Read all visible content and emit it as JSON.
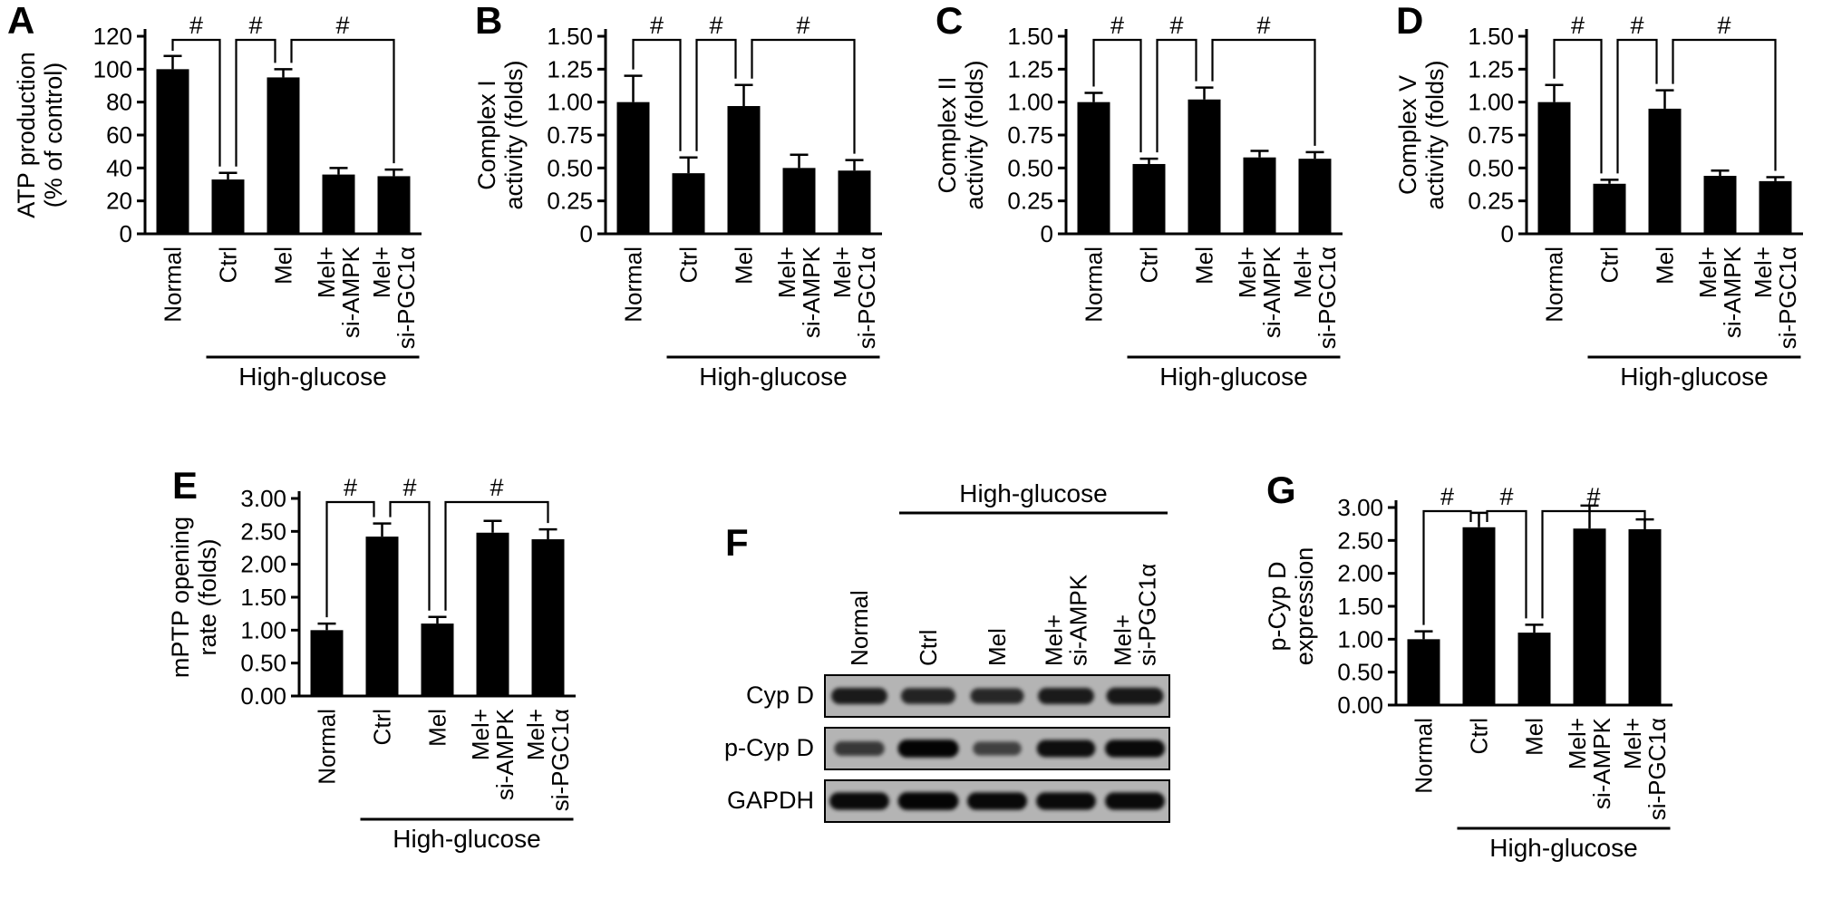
{
  "colors": {
    "bar": "#000000",
    "axis": "#000000",
    "text": "#000000",
    "blot_background": "#b4b4b4",
    "blot_band": "#000000",
    "page_background": "#ffffff"
  },
  "chart_data": [
    {
      "type": "bar",
      "panel": "A",
      "title": "",
      "xlabel": "",
      "ylabel": "ATP production (% of control)",
      "ylabel_lines": [
        "ATP production",
        "(% of control)"
      ],
      "ylim": [
        0,
        120
      ],
      "ticks": [
        0,
        20,
        40,
        60,
        80,
        100,
        120
      ],
      "tick_labels": [
        "0",
        "20",
        "40",
        "60",
        "80",
        "100",
        "120"
      ],
      "categories": [
        "Normal",
        "Ctrl",
        "Mel",
        "Mel+ si-AMPK",
        "Mel+ si-PGC1α"
      ],
      "category_lines": [
        [
          "Normal"
        ],
        [
          "Ctrl"
        ],
        [
          "Mel"
        ],
        [
          "Mel+",
          "si-AMPK"
        ],
        [
          "Mel+",
          "si-PGC1α"
        ]
      ],
      "values": [
        100,
        33,
        95,
        36,
        35
      ],
      "errors": [
        8,
        4,
        5,
        4,
        4
      ],
      "brackets": [
        {
          "from": 0,
          "to": 1,
          "label": "#"
        },
        {
          "from": 1,
          "to": 2,
          "label": "#"
        },
        {
          "from": 2,
          "to": 4,
          "label": "#"
        }
      ],
      "group_label": "High-glucose",
      "group_span": [
        1,
        4
      ],
      "grid": false,
      "legend": false
    },
    {
      "type": "bar",
      "panel": "B",
      "title": "",
      "xlabel": "",
      "ylabel": "Complex I activity (folds)",
      "ylabel_lines": [
        "Complex I",
        "activity (folds)"
      ],
      "ylim": [
        0,
        1.5
      ],
      "ticks": [
        0,
        0.25,
        0.5,
        0.75,
        1,
        1.25,
        1.5
      ],
      "tick_labels": [
        "0",
        "0.25",
        "0.50",
        "0.75",
        "1.00",
        "1.25",
        "1.50"
      ],
      "categories": [
        "Normal",
        "Ctrl",
        "Mel",
        "Mel+ si-AMPK",
        "Mel+ si-PGC1α"
      ],
      "category_lines": [
        [
          "Normal"
        ],
        [
          "Ctrl"
        ],
        [
          "Mel"
        ],
        [
          "Mel+",
          "si-AMPK"
        ],
        [
          "Mel+",
          "si-PGC1α"
        ]
      ],
      "values": [
        1.0,
        0.46,
        0.97,
        0.5,
        0.48
      ],
      "errors": [
        0.2,
        0.12,
        0.16,
        0.1,
        0.08
      ],
      "brackets": [
        {
          "from": 0,
          "to": 1,
          "label": "#"
        },
        {
          "from": 1,
          "to": 2,
          "label": "#"
        },
        {
          "from": 2,
          "to": 4,
          "label": "#"
        }
      ],
      "group_label": "High-glucose",
      "group_span": [
        1,
        4
      ],
      "grid": false,
      "legend": false
    },
    {
      "type": "bar",
      "panel": "C",
      "title": "",
      "xlabel": "",
      "ylabel": "Complex II activity (folds)",
      "ylabel_lines": [
        "Complex II",
        "activity (folds)"
      ],
      "ylim": [
        0,
        1.5
      ],
      "ticks": [
        0,
        0.25,
        0.5,
        0.75,
        1,
        1.25,
        1.5
      ],
      "tick_labels": [
        "0",
        "0.25",
        "0.50",
        "0.75",
        "1.00",
        "1.25",
        "1.50"
      ],
      "categories": [
        "Normal",
        "Ctrl",
        "Mel",
        "Mel+ si-AMPK",
        "Mel+ si-PGC1α"
      ],
      "category_lines": [
        [
          "Normal"
        ],
        [
          "Ctrl"
        ],
        [
          "Mel"
        ],
        [
          "Mel+",
          "si-AMPK"
        ],
        [
          "Mel+",
          "si-PGC1α"
        ]
      ],
      "values": [
        1.0,
        0.53,
        1.02,
        0.58,
        0.57
      ],
      "errors": [
        0.07,
        0.04,
        0.09,
        0.05,
        0.05
      ],
      "brackets": [
        {
          "from": 0,
          "to": 1,
          "label": "#"
        },
        {
          "from": 1,
          "to": 2,
          "label": "#"
        },
        {
          "from": 2,
          "to": 4,
          "label": "#"
        }
      ],
      "group_label": "High-glucose",
      "group_span": [
        1,
        4
      ],
      "grid": false,
      "legend": false
    },
    {
      "type": "bar",
      "panel": "D",
      "title": "",
      "xlabel": "",
      "ylabel": "Complex V activity (folds)",
      "ylabel_lines": [
        "Complex V",
        "activity (folds)"
      ],
      "ylim": [
        0,
        1.5
      ],
      "ticks": [
        0,
        0.25,
        0.5,
        0.75,
        1,
        1.25,
        1.5
      ],
      "tick_labels": [
        "0",
        "0.25",
        "0.50",
        "0.75",
        "1.00",
        "1.25",
        "1.50"
      ],
      "categories": [
        "Normal",
        "Ctrl",
        "Mel",
        "Mel+ si-AMPK",
        "Mel+ si-PGC1α"
      ],
      "category_lines": [
        [
          "Normal"
        ],
        [
          "Ctrl"
        ],
        [
          "Mel"
        ],
        [
          "Mel+",
          "si-AMPK"
        ],
        [
          "Mel+",
          "si-PGC1α"
        ]
      ],
      "values": [
        1.0,
        0.38,
        0.95,
        0.44,
        0.4
      ],
      "errors": [
        0.13,
        0.03,
        0.14,
        0.04,
        0.03
      ],
      "brackets": [
        {
          "from": 0,
          "to": 1,
          "label": "#"
        },
        {
          "from": 1,
          "to": 2,
          "label": "#"
        },
        {
          "from": 2,
          "to": 4,
          "label": "#"
        }
      ],
      "group_label": "High-glucose",
      "group_span": [
        1,
        4
      ],
      "grid": false,
      "legend": false
    },
    {
      "type": "bar",
      "panel": "E",
      "title": "",
      "xlabel": "",
      "ylabel": "mPTP opening rate (folds)",
      "ylabel_lines": [
        "mPTP opening",
        "rate (folds)"
      ],
      "ylim": [
        0,
        3
      ],
      "ticks": [
        0,
        0.5,
        1,
        1.5,
        2,
        2.5,
        3
      ],
      "tick_labels": [
        "0.00",
        "0.50",
        "1.00",
        "1.50",
        "2.00",
        "2.50",
        "3.00"
      ],
      "categories": [
        "Normal",
        "Ctrl",
        "Mel",
        "Mel+ si-AMPK",
        "Mel+ si-PGC1α"
      ],
      "category_lines": [
        [
          "Normal"
        ],
        [
          "Ctrl"
        ],
        [
          "Mel"
        ],
        [
          "Mel+",
          "si-AMPK"
        ],
        [
          "Mel+",
          "si-PGC1α"
        ]
      ],
      "values": [
        1.0,
        2.42,
        1.1,
        2.48,
        2.38
      ],
      "errors": [
        0.1,
        0.2,
        0.1,
        0.18,
        0.15
      ],
      "brackets": [
        {
          "from": 0,
          "to": 1,
          "label": "#"
        },
        {
          "from": 1,
          "to": 2,
          "label": "#"
        },
        {
          "from": 2,
          "to": 4,
          "label": "#"
        }
      ],
      "group_label": "High-glucose",
      "group_span": [
        1,
        4
      ],
      "grid": false,
      "legend": false
    },
    {
      "type": "bar",
      "panel": "G",
      "title": "",
      "xlabel": "",
      "ylabel": "p-Cyp D expression",
      "ylabel_lines": [
        "p-Cyp D",
        "expression"
      ],
      "ylim": [
        0,
        3
      ],
      "ticks": [
        0,
        0.5,
        1,
        1.5,
        2,
        2.5,
        3
      ],
      "tick_labels": [
        "0.00",
        "0.50",
        "1.00",
        "1.50",
        "2.00",
        "2.50",
        "3.00"
      ],
      "categories": [
        "Normal",
        "Ctrl",
        "Mel",
        "Mel+ si-AMPK",
        "Mel+ si-PGC1α"
      ],
      "category_lines": [
        [
          "Normal"
        ],
        [
          "Ctrl"
        ],
        [
          "Mel"
        ],
        [
          "Mel+",
          "si-AMPK"
        ],
        [
          "Mel+",
          "si-PGC1α"
        ]
      ],
      "values": [
        1.0,
        2.7,
        1.1,
        2.68,
        2.67
      ],
      "errors": [
        0.12,
        0.22,
        0.12,
        0.35,
        0.15
      ],
      "brackets": [
        {
          "from": 0,
          "to": 1,
          "label": "#"
        },
        {
          "from": 1,
          "to": 2,
          "label": "#"
        },
        {
          "from": 2,
          "to": 4,
          "label": "#"
        }
      ],
      "group_label": "High-glucose",
      "group_span": [
        1,
        4
      ],
      "grid": false,
      "legend": false
    }
  ],
  "blot": {
    "panel": "F",
    "group_label": "High-glucose",
    "group_span": [
      1,
      4
    ],
    "lanes": [
      "Normal",
      "Ctrl",
      "Mel",
      "Mel+ si-AMPK",
      "Mel+ si-PGC1α"
    ],
    "lane_lines": [
      [
        "Normal"
      ],
      [
        "Ctrl"
      ],
      [
        "Mel"
      ],
      [
        "Mel+",
        "si-AMPK"
      ],
      [
        "Mel+",
        "si-PGC1α"
      ]
    ],
    "rows": [
      {
        "label": "Cyp D",
        "intensities": [
          0.78,
          0.72,
          0.68,
          0.78,
          0.82
        ]
      },
      {
        "label": "p-Cyp D",
        "intensities": [
          0.55,
          0.97,
          0.48,
          0.88,
          0.93
        ]
      },
      {
        "label": "GAPDH",
        "intensities": [
          0.92,
          0.96,
          0.93,
          0.92,
          0.92
        ]
      }
    ]
  }
}
